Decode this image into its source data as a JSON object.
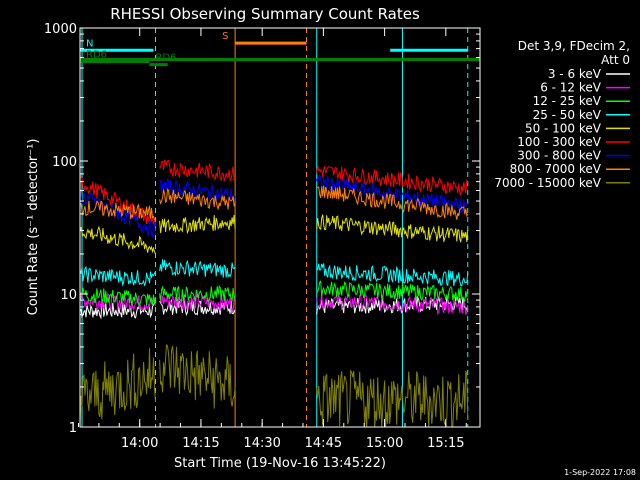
{
  "chart_data": {
    "type": "line",
    "title": "RHESSI Observing Summary Count Rates",
    "xlabel": "Start Time (19-Nov-16 13:45:22)",
    "ylabel": "Count Rate (s⁻¹ detector⁻¹)",
    "yscale": "log",
    "ylim": [
      1,
      1000
    ],
    "x_range_minutes": [
      0,
      98
    ],
    "x_ticks": [
      {
        "label": "14:00",
        "minute": 14.63
      },
      {
        "label": "14:15",
        "minute": 29.63
      },
      {
        "label": "14:30",
        "minute": 44.63
      },
      {
        "label": "14:45",
        "minute": 59.63
      },
      {
        "label": "15:00",
        "minute": 74.63
      },
      {
        "label": "15:15",
        "minute": 89.63
      }
    ],
    "y_ticks": [
      {
        "label": "1",
        "value": 1
      },
      {
        "label": "10",
        "value": 10
      },
      {
        "label": "100",
        "value": 100
      },
      {
        "label": "1000",
        "value": 1000
      }
    ],
    "legend": {
      "placement": "right",
      "header": [
        "Det 3,9, FDecim 2,",
        "Att 0"
      ]
    },
    "series": [
      {
        "name": "3 - 6 keV",
        "color": "#ffffff",
        "segments": [
          {
            "minutes": [
              0,
              18.5
            ],
            "values": [
              7.5,
              7.5
            ]
          },
          {
            "minutes": [
              19.5,
              38
            ],
            "values": [
              8,
              8
            ]
          },
          {
            "minutes": [
              58,
              95
            ],
            "values": [
              8,
              8.5
            ]
          }
        ]
      },
      {
        "name": "6 - 12 keV",
        "color": "#ff00ff",
        "segments": [
          {
            "minutes": [
              0,
              18.5
            ],
            "values": [
              9,
              8.5
            ]
          },
          {
            "minutes": [
              19.5,
              38
            ],
            "values": [
              9,
              8.5
            ]
          },
          {
            "minutes": [
              58,
              95
            ],
            "values": [
              9,
              8
            ]
          }
        ]
      },
      {
        "name": "12 - 25 keV",
        "color": "#00ff00",
        "segments": [
          {
            "minutes": [
              0,
              18.5
            ],
            "values": [
              10,
              9
            ]
          },
          {
            "minutes": [
              19.5,
              38
            ],
            "values": [
              10,
              10
            ]
          },
          {
            "minutes": [
              58,
              95
            ],
            "values": [
              11,
              10
            ]
          }
        ]
      },
      {
        "name": "25 - 50 keV",
        "color": "#00ffff",
        "segments": [
          {
            "minutes": [
              0,
              18.5
            ],
            "values": [
              14,
              13
            ]
          },
          {
            "minutes": [
              19.5,
              38
            ],
            "values": [
              16,
              15
            ]
          },
          {
            "minutes": [
              58,
              95
            ],
            "values": [
              15,
              13
            ]
          }
        ]
      },
      {
        "name": "50 - 100 keV",
        "color": "#e0e000",
        "segments": [
          {
            "minutes": [
              0,
              18.5
            ],
            "values": [
              30,
              22
            ]
          },
          {
            "minutes": [
              19.5,
              38
            ],
            "values": [
              32,
              35
            ]
          },
          {
            "minutes": [
              58,
              95
            ],
            "values": [
              35,
              27
            ]
          }
        ]
      },
      {
        "name": "100 - 300 keV",
        "color": "#ff0000",
        "segments": [
          {
            "minutes": [
              0,
              18.5
            ],
            "values": [
              70,
              35
            ]
          },
          {
            "minutes": [
              19.5,
              38
            ],
            "values": [
              90,
              80
            ]
          },
          {
            "minutes": [
              58,
              95
            ],
            "values": [
              85,
              62
            ]
          }
        ]
      },
      {
        "name": "300 - 800 keV",
        "color": "#0000ff",
        "segments": [
          {
            "minutes": [
              0,
              18.5
            ],
            "values": [
              55,
              30
            ]
          },
          {
            "minutes": [
              19.5,
              38
            ],
            "values": [
              65,
              55
            ]
          },
          {
            "minutes": [
              58,
              95
            ],
            "values": [
              70,
              45
            ]
          }
        ]
      },
      {
        "name": "800 - 7000 keV",
        "color": "#ff8000",
        "segments": [
          {
            "minutes": [
              0,
              18.5
            ],
            "values": [
              45,
              40
            ]
          },
          {
            "minutes": [
              19.5,
              38
            ],
            "values": [
              55,
              48
            ]
          },
          {
            "minutes": [
              58,
              95
            ],
            "values": [
              60,
              40
            ]
          }
        ]
      },
      {
        "name": "7000 - 15000 keV",
        "color": "#808000",
        "segments": [
          {
            "minutes": [
              0,
              18.5
            ],
            "values": [
              1.6,
              2.5
            ]
          },
          {
            "minutes": [
              19.5,
              38
            ],
            "values": [
              3,
              2
            ]
          },
          {
            "minutes": [
              58,
              95
            ],
            "values": [
              1.6,
              1.6
            ]
          }
        ]
      }
    ],
    "flag_bars": [
      {
        "label": "N",
        "color": "#00ffff",
        "minutes": [
          0,
          18
        ],
        "value": 680
      },
      {
        "label": "",
        "color": "#00ffff",
        "minutes": [
          76,
          95
        ],
        "value": 680
      },
      {
        "label": "S",
        "color": "#ff8000",
        "minutes": [
          38,
          55.5
        ],
        "value": 770
      },
      {
        "label": "",
        "color": "#008000",
        "minutes": [
          0,
          98
        ],
        "value": 580
      },
      {
        "label": "RD6",
        "color": "#008000",
        "minutes": [
          17,
          21.5
        ],
        "value": 530
      },
      {
        "label": "RD6",
        "color": "#008000",
        "minutes": [
          0,
          17
        ],
        "value": 560
      }
    ],
    "vertical_markers": [
      {
        "minute": 0.5,
        "color": "#00ffff",
        "style": "solid"
      },
      {
        "minute": 18.5,
        "color": "#00ffff",
        "style": "dashed"
      },
      {
        "minute": 38,
        "color": "#ff8000",
        "style": "solid"
      },
      {
        "minute": 55.5,
        "color": "#ff8000",
        "style": "dashed"
      },
      {
        "minute": 58,
        "color": "#00ffff",
        "style": "solid"
      },
      {
        "minute": 79,
        "color": "#00ffff",
        "style": "solid"
      },
      {
        "minute": 95,
        "color": "#00ffff",
        "style": "dashed"
      }
    ],
    "footer_date": "1-Sep-2022 17:08"
  }
}
